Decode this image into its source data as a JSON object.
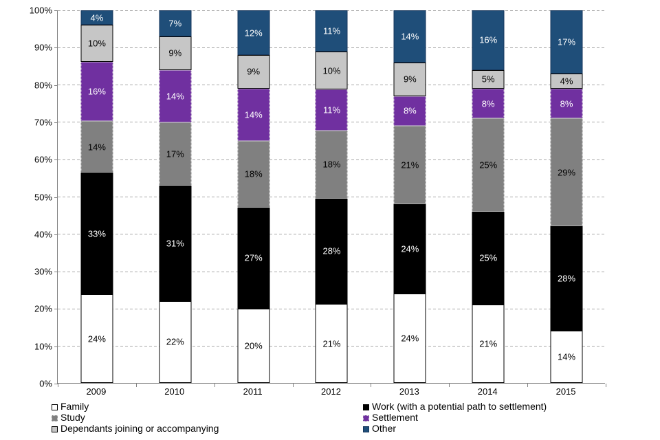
{
  "chart_data": {
    "type": "bar",
    "variant": "100%-stacked-column",
    "title": "",
    "xlabel": "",
    "ylabel": "",
    "categories": [
      "2009",
      "2010",
      "2011",
      "2012",
      "2013",
      "2014",
      "2015"
    ],
    "series": [
      {
        "key": "family",
        "name": "Family",
        "color": "#ffffff",
        "label_color": "#000000",
        "border_style": "solid",
        "border_color": "#000000",
        "values": [
          24,
          22,
          20,
          21,
          24,
          21,
          14
        ]
      },
      {
        "key": "work",
        "name": "Work (with a potential path to settlement)",
        "color": "#000000",
        "label_color": "#ffffff",
        "border_style": "solid",
        "border_color": "#000000",
        "values": [
          33,
          31,
          27,
          28,
          24,
          25,
          28
        ]
      },
      {
        "key": "study",
        "name": "Study",
        "color": "#808080",
        "label_color": "#000000",
        "border_style": "dotted",
        "border_color": "#d9d9d9",
        "values": [
          14,
          17,
          18,
          18,
          21,
          25,
          29
        ]
      },
      {
        "key": "settlement",
        "name": "Settlement",
        "color": "#7030a0",
        "label_color": "#ffffff",
        "border_style": "dotted",
        "border_color": "#d9d9d9",
        "values": [
          16,
          14,
          14,
          11,
          8,
          8,
          8
        ]
      },
      {
        "key": "dependants",
        "name": "Dependants joining or accompanying",
        "color": "#c6c6c6",
        "label_color": "#000000",
        "border_style": "solid",
        "border_color": "#000000",
        "values": [
          10,
          9,
          9,
          10,
          9,
          5,
          4
        ]
      },
      {
        "key": "other",
        "name": "Other",
        "color": "#1f4e79",
        "label_color": "#ffffff",
        "border_style": "solid",
        "border_color": "#16365c",
        "values": [
          4,
          7,
          12,
          11,
          14,
          16,
          17
        ]
      }
    ],
    "data_label_format": "{value}%",
    "y_axis": {
      "min": 0,
      "max": 100,
      "tick_step": 10,
      "tick_labels": [
        "0%",
        "10%",
        "20%",
        "30%",
        "40%",
        "50%",
        "60%",
        "70%",
        "80%",
        "90%",
        "100%"
      ]
    },
    "grid": {
      "horizontal": true,
      "style": "dashed",
      "color": "#a6a6a6"
    },
    "axis_color": "#808080",
    "legend": {
      "position": "bottom",
      "columns": [
        {
          "items": [
            {
              "series_key": "family",
              "label": "Family"
            },
            {
              "series_key": "study",
              "label": "Study"
            },
            {
              "series_key": "dependants",
              "label": "Dependants joining or accompanying"
            }
          ]
        },
        {
          "items": [
            {
              "series_key": "work",
              "label": "Work (with a potential path to settlement)"
            },
            {
              "series_key": "settlement",
              "label": "Settlement"
            },
            {
              "series_key": "other",
              "label": "Other"
            }
          ]
        }
      ]
    }
  }
}
